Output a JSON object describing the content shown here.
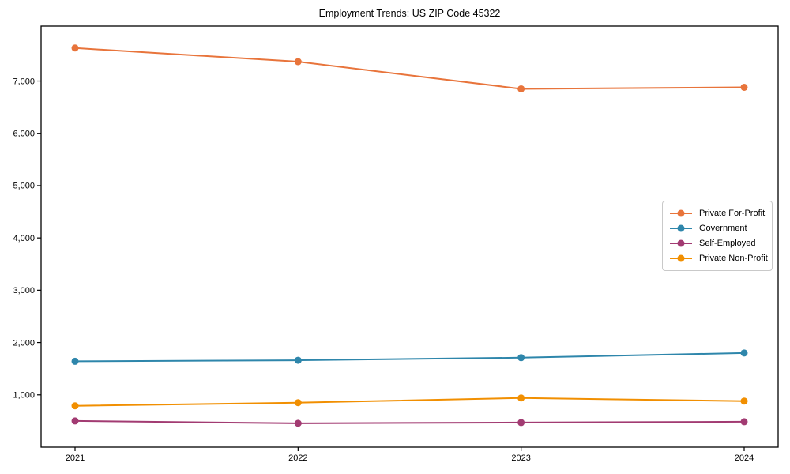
{
  "chart_data": {
    "type": "line",
    "title": "Employment Trends: US ZIP Code 45322",
    "x": [
      "2021",
      "2022",
      "2023",
      "2024"
    ],
    "series": [
      {
        "name": "Private For-Profit",
        "color": "#E8743B",
        "values": [
          7630,
          7370,
          6850,
          6880
        ]
      },
      {
        "name": "Government",
        "color": "#2E86AB",
        "values": [
          1640,
          1660,
          1710,
          1800
        ]
      },
      {
        "name": "Self-Employed",
        "color": "#A23B72",
        "values": [
          500,
          455,
          470,
          485
        ]
      },
      {
        "name": "Private Non-Profit",
        "color": "#F18F01",
        "values": [
          790,
          850,
          940,
          880
        ]
      }
    ],
    "xlabel": "",
    "ylabel": "",
    "ylim": [
      0,
      8050
    ],
    "yticks": [
      {
        "value": 1000,
        "label": "1,000"
      },
      {
        "value": 2000,
        "label": "2,000"
      },
      {
        "value": 3000,
        "label": "3,000"
      },
      {
        "value": 4000,
        "label": "4,000"
      },
      {
        "value": 5000,
        "label": "5,000"
      },
      {
        "value": 6000,
        "label": "6,000"
      },
      {
        "value": 7000,
        "label": "7,000"
      }
    ],
    "grid": false,
    "legend_position": "center right",
    "marker": "circle",
    "line_width": 2,
    "marker_radius": 4.5,
    "axis_color": "#000000",
    "background": "#ffffff"
  }
}
